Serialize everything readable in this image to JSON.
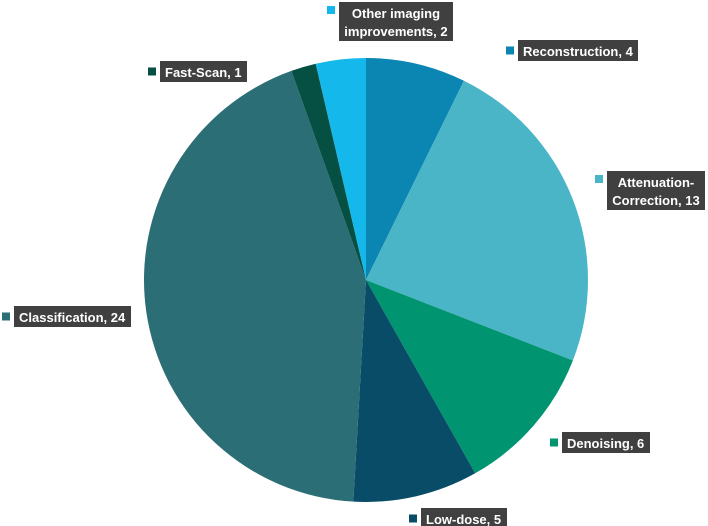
{
  "chart_data": {
    "type": "pie",
    "title": "",
    "slices": [
      {
        "label": "Reconstruction",
        "value": 4,
        "color": "#0b86b3",
        "label_text": [
          "Reconstruction, 4"
        ]
      },
      {
        "label": "Attenuation-Correction",
        "value": 13,
        "color": "#4ab5c7",
        "label_text": [
          "Attenuation-",
          "Correction, 13"
        ]
      },
      {
        "label": "Denoising",
        "value": 6,
        "color": "#009470",
        "label_text": [
          "Denoising, 6"
        ]
      },
      {
        "label": "Low-dose",
        "value": 5,
        "color": "#084c67",
        "label_text": [
          "Low-dose, 5"
        ]
      },
      {
        "label": "Classification",
        "value": 24,
        "color": "#2b6e76",
        "label_text": [
          "Classification, 24"
        ]
      },
      {
        "label": "Fast-Scan",
        "value": 1,
        "color": "#064f43",
        "label_text": [
          "Fast-Scan, 1"
        ]
      },
      {
        "label": "Other imaging improvements",
        "value": 2,
        "color": "#14b8ea",
        "label_text": [
          "Other imaging",
          "improvements, 2"
        ]
      }
    ],
    "start_angle_deg": 0,
    "direction": "clockwise",
    "legend": "none",
    "data_labels": "outside-with-leader-markers"
  }
}
